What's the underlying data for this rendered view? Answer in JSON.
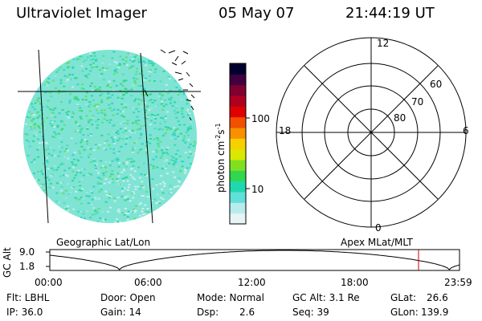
{
  "header": {
    "instrument": "Ultraviolet Imager",
    "date": "05 May 07",
    "time": "21:44:19 UT"
  },
  "globe": {
    "label": "Geographic Lat/Lon"
  },
  "colorbar": {
    "unit_label": "photon cm",
    "unit_sup1": "-2",
    "unit_mid": "s",
    "unit_sup2": "-1",
    "tick_100": "100",
    "tick_10": "10",
    "colors": [
      "#e8f4f4",
      "#b8ecec",
      "#60e0d8",
      "#20d8b0",
      "#30d850",
      "#80e020",
      "#d8e800",
      "#f8d000",
      "#f89000",
      "#f05000",
      "#e00000",
      "#b00020",
      "#800030",
      "#400040",
      "#000030"
    ]
  },
  "polar": {
    "label": "Apex MLat/MLT",
    "mlt_12": "12",
    "mlt_18": "18",
    "mlt_6": "6",
    "mlt_0": "0",
    "lat_60": "60",
    "lat_70": "70",
    "lat_80": "80"
  },
  "orbit": {
    "y_axis_label": "GC Alt",
    "y_max": "9.0",
    "y_min": "1.8",
    "x_ticks": [
      "00:00",
      "06:00",
      "12:00",
      "18:00",
      "23:59"
    ],
    "marker_color": "#cc0000"
  },
  "footer": {
    "filter": "Flt: LBHL",
    "ip": "IP: 36.0",
    "door": "Door: Open",
    "gain": "Gain: 14",
    "mode": "Mode: Normal",
    "dsp_label": "Dsp:",
    "dsp_value": "2.6",
    "gc_alt": "GC Alt: 3.1 Re",
    "seq": "Seq: 39",
    "glat_label": "GLat:",
    "glat_value": "26.6",
    "glon_label": "GLon:",
    "glon_value": "139.9"
  }
}
